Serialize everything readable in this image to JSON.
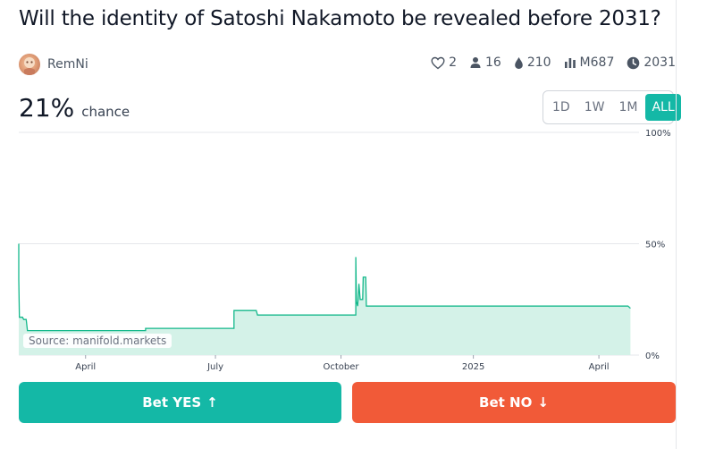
{
  "market": {
    "question": "Will the identity of Satoshi Nakamoto be revealed before 2031?",
    "author": "RemNi",
    "stats": {
      "likes": "2",
      "traders": "16",
      "liquidity": "210",
      "volume": "M687",
      "close_year": "2031"
    },
    "probability": "21%",
    "probability_label": "chance"
  },
  "time_range": {
    "options": [
      "1D",
      "1W",
      "1M",
      "ALL"
    ],
    "selected": "ALL"
  },
  "chart_data": {
    "type": "area",
    "y_ticks": [
      "100%",
      "50%",
      "0%"
    ],
    "ylim": [
      0,
      100
    ],
    "x_ticks": [
      "April",
      "July",
      "October",
      "2025",
      "April"
    ],
    "x_tick_pos": [
      0.108,
      0.318,
      0.521,
      0.735,
      0.938
    ],
    "source": "Source: manifold.markets",
    "series": [
      {
        "points": [
          [
            0.0,
            50
          ],
          [
            0.0,
            34
          ],
          [
            0.001,
            17
          ],
          [
            0.006,
            17
          ],
          [
            0.008,
            16
          ],
          [
            0.012,
            16
          ],
          [
            0.014,
            11
          ],
          [
            0.205,
            11
          ],
          [
            0.205,
            12
          ],
          [
            0.348,
            12
          ],
          [
            0.348,
            20
          ],
          [
            0.384,
            20
          ],
          [
            0.386,
            18
          ],
          [
            0.545,
            18
          ],
          [
            0.545,
            44
          ],
          [
            0.546,
            24
          ],
          [
            0.548,
            22
          ],
          [
            0.55,
            32
          ],
          [
            0.552,
            25
          ],
          [
            0.556,
            25
          ],
          [
            0.557,
            35
          ],
          [
            0.561,
            35
          ],
          [
            0.562,
            22
          ],
          [
            0.985,
            22
          ],
          [
            0.989,
            21
          ]
        ],
        "color": "#14b88b"
      }
    ]
  },
  "actions": {
    "yes_label": "Bet YES",
    "no_label": "Bet NO",
    "yes_arrow": "↑",
    "no_arrow": "↓"
  },
  "colors": {
    "accent": "#14b8a6",
    "no": "#f15a38",
    "line": "#14b88b",
    "fill": "#d4f2e8"
  },
  "icons": [
    "heart-icon",
    "user-icon",
    "droplet-icon",
    "bar-chart-icon",
    "clock-icon"
  ]
}
